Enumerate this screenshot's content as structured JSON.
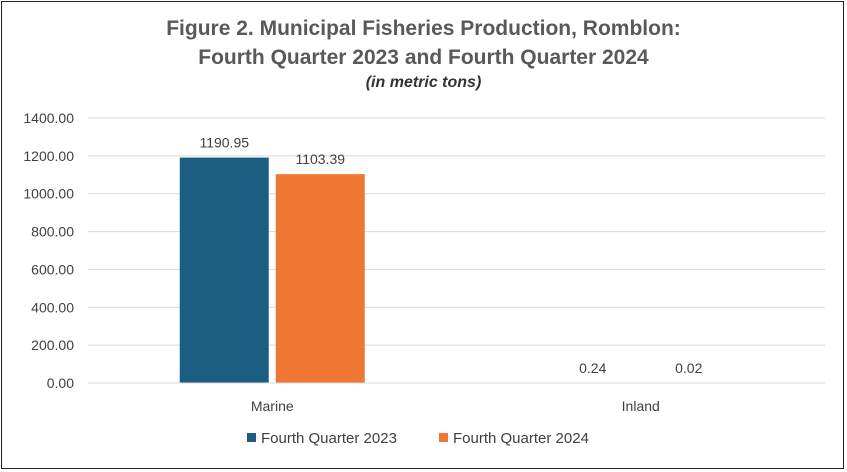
{
  "chart_data": {
    "type": "bar",
    "title": "Figure 2. Municipal Fisheries Production, Romblon:",
    "title_line2": "Fourth Quarter 2023 and Fourth Quarter 2024",
    "subtitle": "(in metric tons)",
    "categories": [
      "Marine",
      "Inland"
    ],
    "series": [
      {
        "name": "Fourth Quarter 2023",
        "values": [
          1190.95,
          0.24
        ],
        "labels": [
          "1190.95",
          "0.24"
        ],
        "color": "#1b5e82"
      },
      {
        "name": "Fourth Quarter 2024",
        "values": [
          1103.39,
          0.02
        ],
        "labels": [
          "1103.39",
          "0.02"
        ],
        "color": "#ee7734"
      }
    ],
    "yticks": [
      "0.00",
      "200.00",
      "400.00",
      "600.00",
      "800.00",
      "1000.00",
      "1200.00",
      "1400.00"
    ],
    "ylim": [
      0,
      1400
    ],
    "xlabel": "",
    "ylabel": "",
    "grid": true,
    "legend": "bottom",
    "gridColor": "#d9d9d9",
    "textColor": "#404040"
  }
}
